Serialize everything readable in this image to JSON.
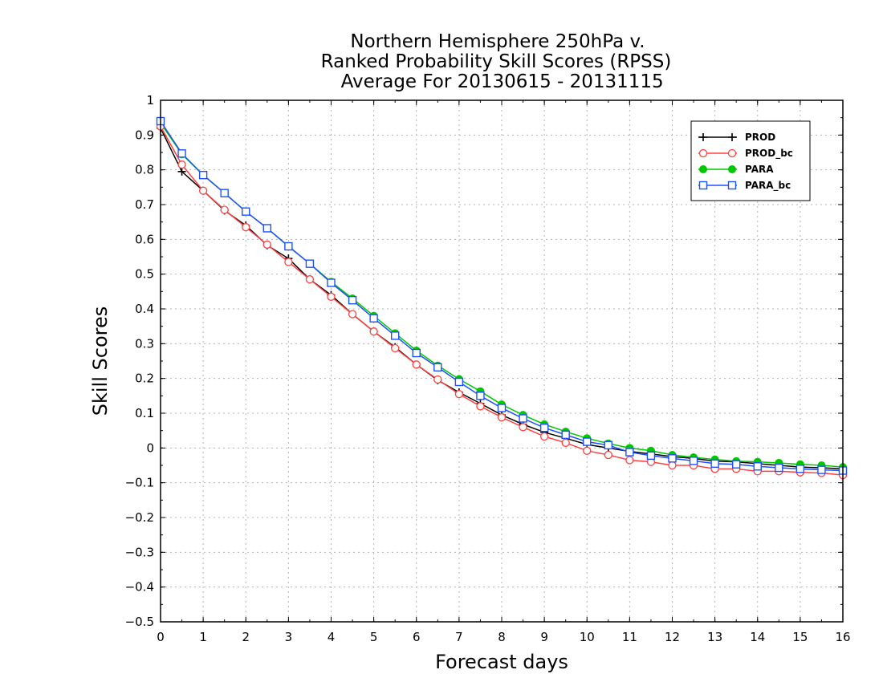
{
  "chart_data": {
    "type": "line",
    "title": [
      "Northern Hemisphere 250hPa v.",
      "Ranked Probability Skill Scores (RPSS)",
      " Average For 20130615 - 20131115"
    ],
    "xlabel": "Forecast days",
    "ylabel": "Skill Scores",
    "xlim": [
      0,
      16
    ],
    "ylim": [
      -0.5,
      1
    ],
    "xticks": [
      0,
      1,
      2,
      3,
      4,
      5,
      6,
      7,
      8,
      9,
      10,
      11,
      12,
      13,
      14,
      15,
      16
    ],
    "yticks": [
      -0.5,
      -0.4,
      -0.3,
      -0.2,
      -0.1,
      0,
      0.1,
      0.2,
      0.3,
      0.4,
      0.5,
      0.6,
      0.7,
      0.8,
      0.9,
      1
    ],
    "xtick_labels": [
      "0",
      "1",
      "2",
      "3",
      "4",
      "5",
      "6",
      "7",
      "8",
      "9",
      "10",
      "11",
      "12",
      "13",
      "14",
      "15",
      "16"
    ],
    "ytick_labels": [
      "−0.5",
      "−0.4",
      "−0.3",
      "−0.2",
      "−0.1",
      "0",
      "0.1",
      "0.2",
      "0.3",
      "0.4",
      "0.5",
      "0.6",
      "0.7",
      "0.8",
      "0.9",
      "1"
    ],
    "grid": true,
    "legend_position": "top-right",
    "x": [
      0,
      0.5,
      1,
      1.5,
      2,
      2.5,
      3,
      3.5,
      4,
      4.5,
      5,
      5.5,
      6,
      6.5,
      7,
      7.5,
      8,
      8.5,
      9,
      9.5,
      10,
      10.5,
      11,
      11.5,
      12,
      12.5,
      13,
      13.5,
      14,
      14.5,
      15,
      15.5,
      16
    ],
    "series": [
      {
        "name": "PROD",
        "color": "#000000",
        "marker": "plus",
        "values": [
          0.92,
          0.795,
          0.74,
          0.683,
          0.64,
          0.583,
          0.545,
          0.485,
          0.44,
          0.385,
          0.335,
          0.29,
          0.24,
          0.195,
          0.16,
          0.128,
          0.095,
          0.068,
          0.045,
          0.028,
          0.01,
          0,
          -0.01,
          -0.017,
          -0.025,
          -0.03,
          -0.038,
          -0.04,
          -0.045,
          -0.05,
          -0.055,
          -0.057,
          -0.06
        ]
      },
      {
        "name": "PROD_bc",
        "color": "#ff4040",
        "marker": "circle-open",
        "values": [
          0.925,
          0.815,
          0.74,
          0.685,
          0.635,
          0.585,
          0.535,
          0.485,
          0.435,
          0.385,
          0.335,
          0.287,
          0.24,
          0.197,
          0.155,
          0.12,
          0.088,
          0.06,
          0.033,
          0.015,
          -0.008,
          -0.02,
          -0.035,
          -0.04,
          -0.05,
          -0.05,
          -0.06,
          -0.06,
          -0.067,
          -0.067,
          -0.07,
          -0.072,
          -0.078
        ]
      },
      {
        "name": "PARA",
        "color": "#00c800",
        "marker": "circle-filled",
        "values": [
          0.935,
          0.845,
          0.785,
          0.733,
          0.68,
          0.632,
          0.58,
          0.53,
          0.478,
          0.43,
          0.38,
          0.33,
          0.28,
          0.237,
          0.198,
          0.163,
          0.125,
          0.095,
          0.068,
          0.047,
          0.028,
          0.013,
          0,
          -0.008,
          -0.02,
          -0.027,
          -0.033,
          -0.038,
          -0.04,
          -0.043,
          -0.047,
          -0.05,
          -0.055
        ]
      },
      {
        "name": "PARA_bc",
        "color": "#1e50ff",
        "marker": "square-open",
        "values": [
          0.94,
          0.847,
          0.785,
          0.733,
          0.68,
          0.632,
          0.58,
          0.53,
          0.475,
          0.425,
          0.373,
          0.323,
          0.273,
          0.232,
          0.19,
          0.15,
          0.115,
          0.085,
          0.058,
          0.038,
          0.018,
          0.008,
          -0.012,
          -0.022,
          -0.03,
          -0.037,
          -0.045,
          -0.047,
          -0.053,
          -0.057,
          -0.06,
          -0.063,
          -0.065
        ]
      }
    ]
  }
}
